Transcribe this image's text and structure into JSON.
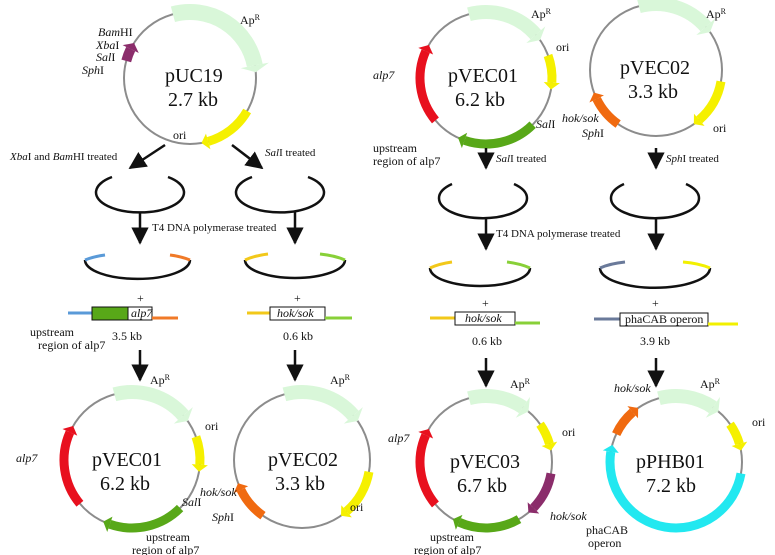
{
  "plasmids": {
    "puc19": {
      "name": "pUC19",
      "size": "2.7 kb"
    },
    "pvec01_top": {
      "name": "pVEC01",
      "size": "6.2 kb"
    },
    "pvec02_top": {
      "name": "pVEC02",
      "size": "3.3 kb"
    },
    "pvec01_bottom": {
      "name": "pVEC01",
      "size": "6.2 kb"
    },
    "pvec02_bottom": {
      "name": "pVEC02",
      "size": "3.3 kb"
    },
    "pvec03": {
      "name": "pVEC03",
      "size": "6.7 kb"
    },
    "pphb01": {
      "name": "pPHB01",
      "size": "7.2 kb"
    }
  },
  "labels": {
    "ap": "Ap",
    "ap_sup": "R",
    "ori": "ori",
    "alp7": "alp7",
    "hoksok": "hok/sok",
    "bamhi_i": "Bam",
    "bamhi_r": "HI",
    "xbai_i": "Xba",
    "xbai_r": "I",
    "sali_i": "Sal",
    "sali_r": "I",
    "sphi_i": "Sph",
    "sphi_r": "I",
    "upstream_1": "upstream",
    "upstream_2": "region of alp7",
    "phacab_1": "phaCAB",
    "phacab_2": "operon",
    "phacab_operon": "phaCAB operon",
    "plus": "+"
  },
  "steps": {
    "xba_bam_treated_i1": "Xba",
    "xba_bam_treated_r1": "I and ",
    "xba_bam_treated_i2": "Bam",
    "xba_bam_treated_r2": "HI treated",
    "sal_treated_i": "Sal",
    "sal_treated_r": "I treated",
    "sph_treated_i": "Sph",
    "sph_treated_r": "I treated",
    "t4": "T4 DNA polymerase treated"
  },
  "inserts": {
    "alp7_size": "3.5 kb",
    "hoksok_size": "0.6 kb",
    "phacab_size": "3.9 kb"
  },
  "colors": {
    "backbone": "#8c8c8c",
    "ampR": "#d9f7d9",
    "ori": "#f5f000",
    "alp7": "#e8101e",
    "upstream": "#58a818",
    "hoksok": "#f06a10",
    "site_purple": "#8b2d6b",
    "phacab": "#22e8f0",
    "end_blue": "#5a9ad8",
    "end_orange": "#f07a28",
    "end_yellow": "#f2c81a",
    "end_green": "#88d038",
    "end_gray": "#6a7a9a"
  }
}
